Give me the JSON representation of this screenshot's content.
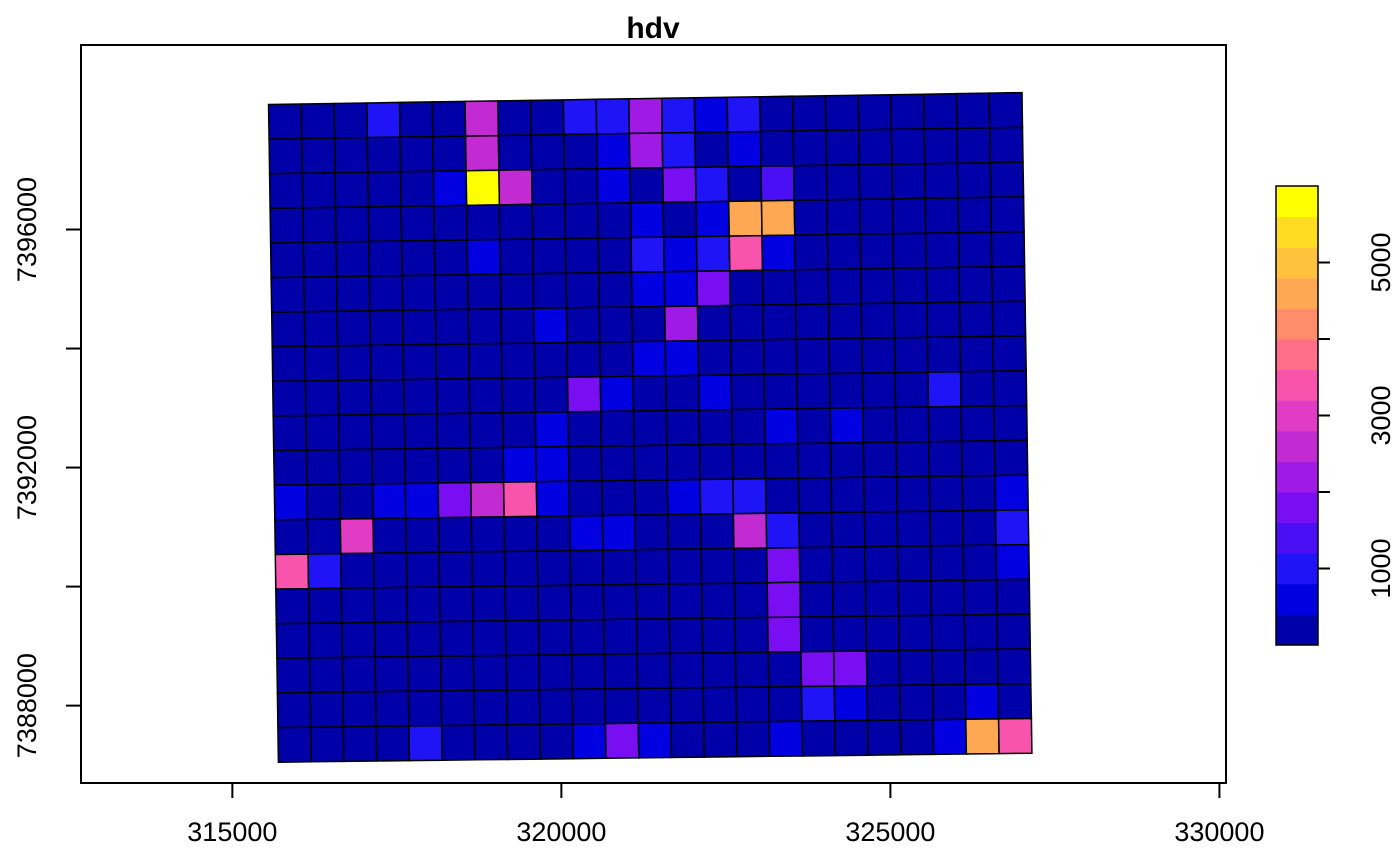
{
  "chart_data": {
    "type": "heatmap",
    "title": "hdv",
    "xlabel": "",
    "ylabel": "",
    "xlim": [
      312700,
      330100
    ],
    "ylim": [
      7386700,
      7399100
    ],
    "x_ticks": [
      315000,
      320000,
      325000,
      330000
    ],
    "x_tick_labels": [
      "315000",
      "320000",
      "325000",
      "330000"
    ],
    "y_ticks": [
      7388000,
      7390000,
      7392000,
      7394000,
      7396000
    ],
    "y_tick_labels": [
      "7388000",
      "",
      "7392000",
      "",
      "7396000"
    ],
    "grid": false,
    "legend": {
      "type": "colorbar",
      "placement": "right",
      "range": [
        0,
        6000
      ],
      "breaks": [
        1000,
        2000,
        3000,
        4000,
        5000
      ],
      "labels": [
        "1000",
        "",
        "3000",
        "",
        "5000"
      ],
      "colors": [
        "#0000A8",
        "#0000E0",
        "#1E14F5",
        "#4A0FF5",
        "#7A0EF2",
        "#A01AE6",
        "#C22BD2",
        "#E03CC4",
        "#F854AE",
        "#FF7088",
        "#FF8C6A",
        "#FFA854",
        "#FFC23C",
        "#FFDC22",
        "#FFFF00"
      ]
    },
    "grid_shape": {
      "rows": 19,
      "cols": 23
    },
    "grid_corners": {
      "top_left": [
        315550,
        7398100
      ],
      "top_right": [
        327000,
        7398300
      ],
      "bottom_left": [
        315700,
        7387050
      ],
      "bottom_right": [
        327150,
        7387200
      ]
    },
    "values": [
      [
        100,
        100,
        100,
        800,
        100,
        100,
        2700,
        100,
        100,
        1000,
        1000,
        2100,
        1000,
        600,
        1100,
        100,
        100,
        100,
        100,
        100,
        100,
        100,
        100
      ],
      [
        100,
        100,
        100,
        100,
        100,
        100,
        2700,
        100,
        100,
        100,
        500,
        2100,
        1100,
        100,
        600,
        100,
        100,
        100,
        100,
        100,
        100,
        100,
        100
      ],
      [
        100,
        100,
        100,
        100,
        100,
        600,
        6000,
        2400,
        100,
        100,
        500,
        100,
        1700,
        1100,
        100,
        1200,
        100,
        100,
        100,
        100,
        100,
        100,
        100
      ],
      [
        100,
        100,
        100,
        100,
        100,
        100,
        100,
        100,
        100,
        100,
        100,
        500,
        100,
        400,
        4500,
        4500,
        100,
        100,
        100,
        100,
        100,
        100,
        100
      ],
      [
        100,
        100,
        100,
        100,
        100,
        100,
        600,
        100,
        100,
        100,
        100,
        1000,
        500,
        1100,
        3500,
        500,
        100,
        100,
        100,
        100,
        100,
        100,
        100
      ],
      [
        100,
        100,
        100,
        100,
        100,
        100,
        100,
        100,
        100,
        100,
        100,
        500,
        500,
        1700,
        100,
        100,
        100,
        100,
        100,
        100,
        100,
        100,
        100
      ],
      [
        100,
        100,
        100,
        100,
        100,
        100,
        100,
        100,
        400,
        100,
        100,
        100,
        2100,
        100,
        100,
        100,
        100,
        100,
        100,
        100,
        100,
        100,
        100
      ],
      [
        100,
        100,
        100,
        100,
        100,
        100,
        100,
        100,
        100,
        100,
        100,
        400,
        500,
        100,
        100,
        100,
        100,
        100,
        100,
        100,
        100,
        100,
        100
      ],
      [
        100,
        100,
        100,
        100,
        100,
        100,
        100,
        100,
        100,
        1600,
        500,
        100,
        100,
        400,
        100,
        100,
        100,
        100,
        100,
        100,
        1100,
        100,
        100
      ],
      [
        100,
        100,
        100,
        100,
        100,
        100,
        100,
        100,
        500,
        100,
        100,
        100,
        100,
        100,
        100,
        500,
        100,
        500,
        100,
        100,
        100,
        100,
        100
      ],
      [
        100,
        100,
        100,
        100,
        100,
        100,
        100,
        400,
        500,
        100,
        100,
        100,
        100,
        100,
        100,
        100,
        100,
        100,
        100,
        100,
        100,
        100,
        100
      ],
      [
        700,
        100,
        100,
        600,
        700,
        1700,
        2700,
        3500,
        500,
        100,
        100,
        100,
        600,
        1100,
        1100,
        100,
        100,
        100,
        100,
        100,
        100,
        100,
        600
      ],
      [
        100,
        100,
        3000,
        100,
        100,
        100,
        100,
        100,
        100,
        500,
        500,
        100,
        100,
        100,
        2400,
        1100,
        100,
        100,
        100,
        100,
        100,
        100,
        1100
      ],
      [
        3500,
        1100,
        100,
        100,
        100,
        100,
        100,
        100,
        100,
        100,
        100,
        100,
        100,
        100,
        100,
        1700,
        100,
        100,
        100,
        100,
        100,
        100,
        600
      ],
      [
        100,
        100,
        100,
        100,
        100,
        100,
        100,
        100,
        100,
        100,
        100,
        100,
        100,
        100,
        100,
        1700,
        100,
        100,
        100,
        100,
        100,
        100,
        100
      ],
      [
        100,
        100,
        100,
        100,
        100,
        100,
        100,
        100,
        100,
        100,
        100,
        100,
        100,
        100,
        100,
        1700,
        100,
        100,
        100,
        100,
        100,
        100,
        100
      ],
      [
        100,
        100,
        100,
        100,
        100,
        100,
        100,
        100,
        100,
        100,
        100,
        100,
        100,
        100,
        100,
        100,
        1700,
        1700,
        100,
        100,
        100,
        100,
        100
      ],
      [
        100,
        100,
        100,
        100,
        100,
        100,
        100,
        100,
        100,
        100,
        100,
        100,
        100,
        100,
        100,
        100,
        1100,
        500,
        100,
        100,
        100,
        500,
        100
      ],
      [
        100,
        100,
        100,
        100,
        1100,
        100,
        100,
        100,
        100,
        500,
        1700,
        500,
        100,
        100,
        100,
        500,
        100,
        100,
        100,
        100,
        500,
        4700,
        3500
      ]
    ]
  }
}
